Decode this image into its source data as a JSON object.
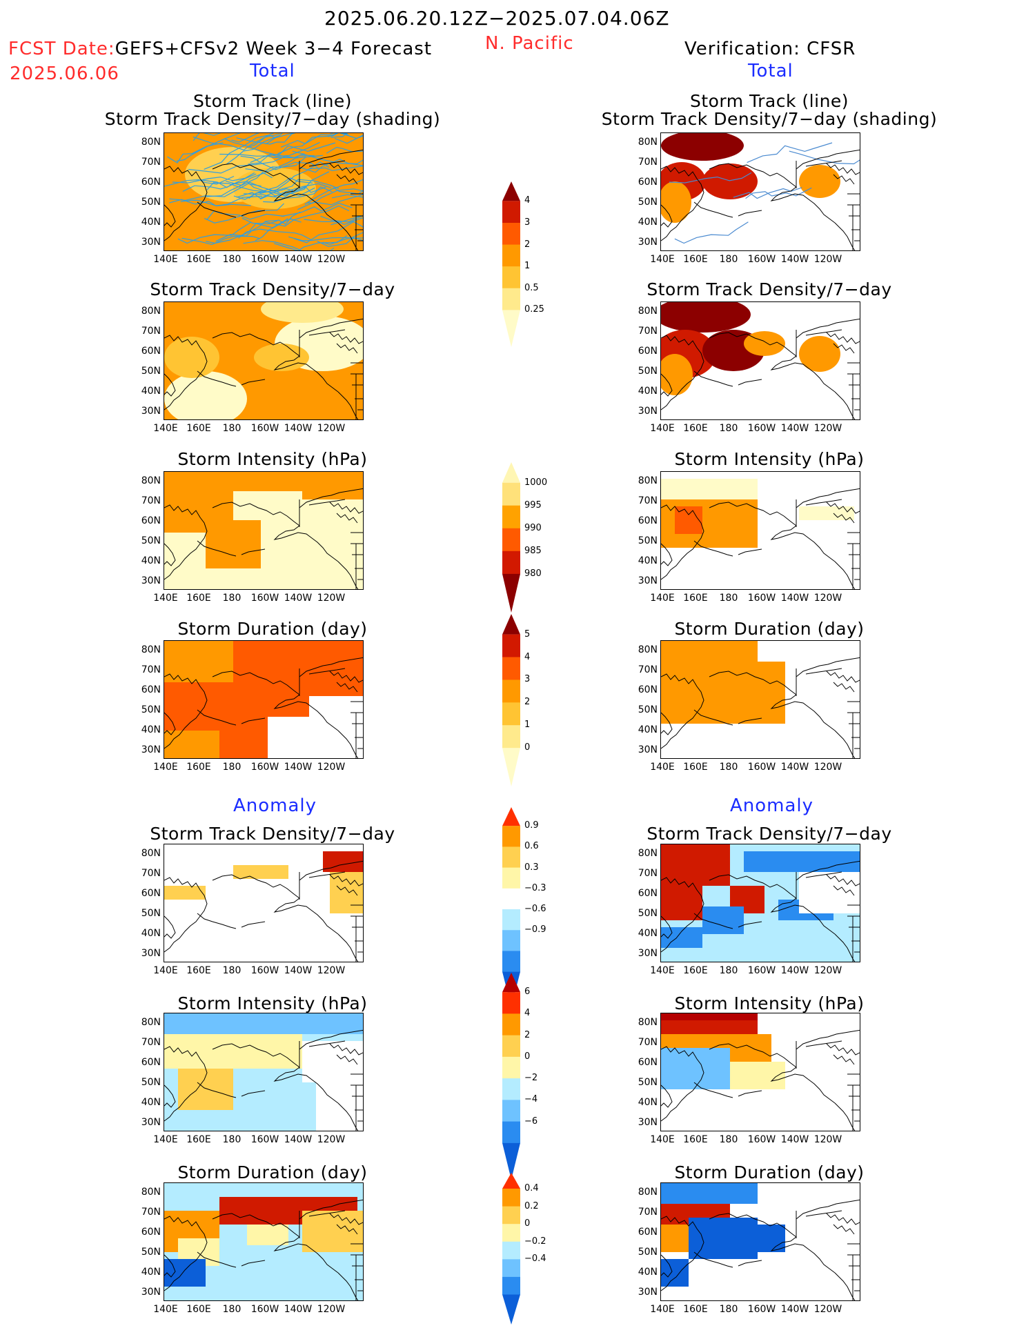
{
  "header": {
    "date_range": "2025.06.20.12Z−2025.07.04.06Z",
    "fcst_label": "FCST Date:",
    "fcst_model": "GEFS+CFSv2 Week 3−4 Forecast",
    "fcst_date": "2025.06.06",
    "region": "N. Pacific",
    "verification": "Verification: CFSR"
  },
  "sections": {
    "total": "Total",
    "anomaly": "Anomaly"
  },
  "panel_titles": {
    "track_line": "Storm Track (line)",
    "track_density_shading": "Storm Track Density/7−day (shading)",
    "track_density": "Storm Track Density/7−day",
    "intensity": "Storm Intensity (hPa)",
    "duration": "Storm Duration (day)"
  },
  "axes": {
    "lat_ticks": [
      "80N",
      "70N",
      "60N",
      "50N",
      "40N",
      "30N"
    ],
    "lon_ticks": [
      "140E",
      "160E",
      "180",
      "160W",
      "140W",
      "120W"
    ]
  },
  "colorbars": {
    "density_total": {
      "labels": [
        "4",
        "3",
        "2",
        "1",
        "0.5",
        "0.25"
      ],
      "colors": [
        "#8c0000",
        "#d01a00",
        "#ff5a00",
        "#ff9900",
        "#ffc433",
        "#ffea8c",
        "#fffbc8"
      ]
    },
    "intensity_total": {
      "labels": [
        "1000",
        "995",
        "990",
        "985",
        "980"
      ],
      "colors": [
        "#fff6b4",
        "#ffe17a",
        "#ffa200",
        "#ff5a00",
        "#d21900",
        "#8c0000"
      ]
    },
    "duration_total": {
      "labels": [
        "5",
        "4",
        "3",
        "2",
        "1",
        "0"
      ],
      "colors": [
        "#8c0000",
        "#d21900",
        "#ff5a00",
        "#ff9900",
        "#ffc433",
        "#ffea8c",
        "#fffbc8"
      ]
    },
    "density_anom": {
      "labels": [
        "0.9",
        "0.6",
        "0.3",
        "−0.3",
        "−0.6",
        "−0.9"
      ],
      "colors": [
        "#ff3000",
        "#ff9900",
        "#ffd050",
        "#fff6a8",
        "#ffffff",
        "#b4ecff",
        "#6ec2ff",
        "#2a8cf0",
        "#0c5fd8"
      ]
    },
    "intensity_anom": {
      "labels": [
        "6",
        "4",
        "2",
        "0",
        "−2",
        "−4",
        "−6"
      ],
      "colors": [
        "#b40000",
        "#ff3000",
        "#ff9900",
        "#ffd050",
        "#fff6a8",
        "#b4ecff",
        "#6ec2ff",
        "#2a8cf0",
        "#0c5fd8"
      ]
    },
    "duration_anom": {
      "labels": [
        "0.4",
        "0.2",
        "0",
        "−0.2",
        "−0.4"
      ],
      "colors": [
        "#ff3000",
        "#ff9900",
        "#ffd050",
        "#fff6a8",
        "#b4ecff",
        "#6ec2ff",
        "#2a8cf0",
        "#0c5fd8"
      ]
    }
  }
}
